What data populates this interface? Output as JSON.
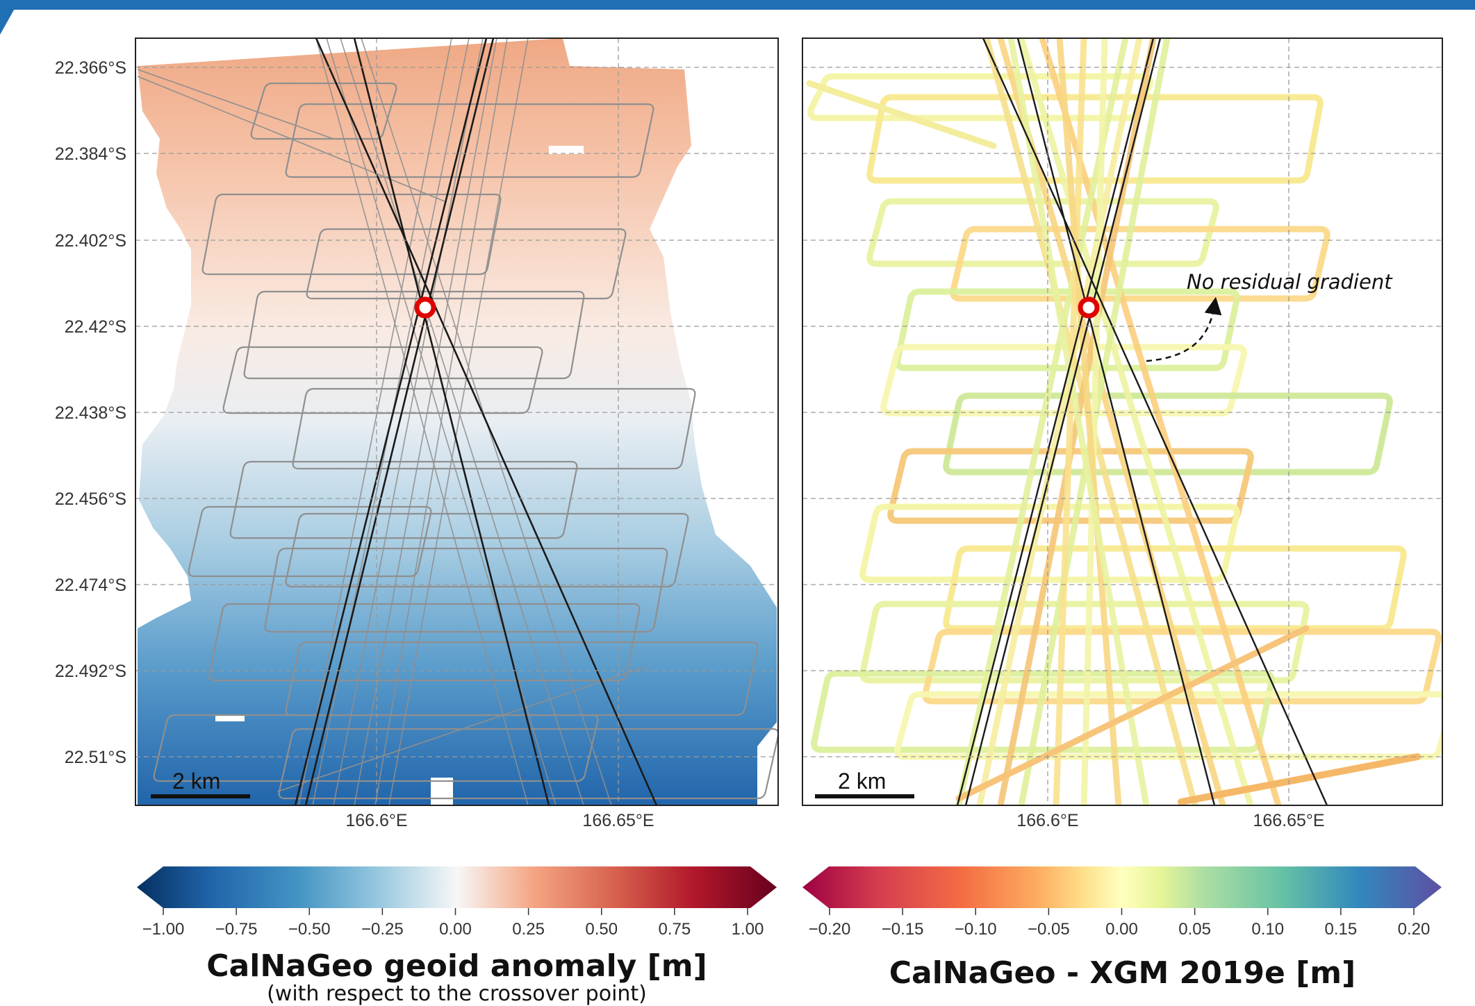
{
  "colors": {
    "header_bar": "#1f6fb5",
    "crossover_marker": "#e00000",
    "reference_track": "#1a1a1a",
    "survey_track": "#8f8f8f"
  },
  "chart_data": [
    {
      "type": "heatmap",
      "title": "CalNaGeo geoid anomaly [m]",
      "subtitle": "(with respect to the crossover point)",
      "colormap": "RdBu_r",
      "colorbar_range": [
        -1.0,
        1.0
      ],
      "colorbar_ticks": [
        "−1.00",
        "−0.75",
        "−0.50",
        "−0.25",
        "0.00",
        "0.25",
        "0.50",
        "0.75",
        "1.00"
      ],
      "y_tick_labels": [
        "22.366°S",
        "22.384°S",
        "22.402°S",
        "22.42°S",
        "22.438°S",
        "22.456°S",
        "22.474°S",
        "22.492°S",
        "22.51°S"
      ],
      "x_tick_labels": [
        "166.6°E",
        "166.65°E"
      ],
      "grid": true,
      "scale_bar": "2 km",
      "crossover_point": {
        "lon": 166.61,
        "lat": -22.415
      },
      "gradient": {
        "north_value": 0.45,
        "south_value": -0.85
      }
    },
    {
      "type": "scatter",
      "title": "CalNaGeo - XGM 2019e [m]",
      "colormap": "Spectral",
      "colorbar_range": [
        -0.2,
        0.2
      ],
      "colorbar_ticks": [
        "−0.20",
        "−0.15",
        "−0.10",
        "−0.05",
        "0.00",
        "0.05",
        "0.10",
        "0.15",
        "0.20"
      ],
      "x_tick_labels": [
        "166.6°E",
        "166.65°E"
      ],
      "grid": true,
      "scale_bar": "2 km",
      "annotation": "No residual gradient",
      "crossover_point": {
        "lon": 166.61,
        "lat": -22.415
      },
      "typical_residual_range": [
        -0.06,
        0.04
      ]
    }
  ]
}
